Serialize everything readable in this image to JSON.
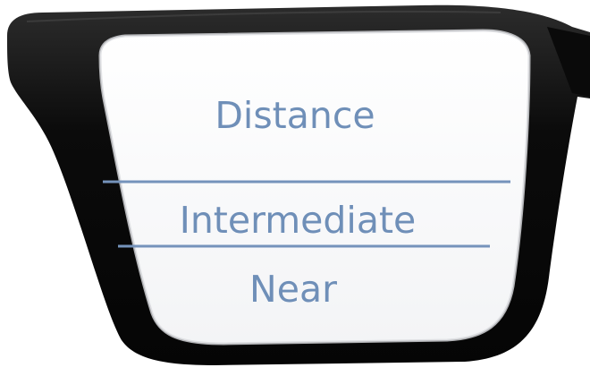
{
  "lens": {
    "zones": [
      {
        "id": "distance",
        "label": "Distance"
      },
      {
        "id": "intermediate",
        "label": "Intermediate"
      },
      {
        "id": "near",
        "label": "Near"
      }
    ]
  },
  "colors": {
    "frame": "#0b0b0b",
    "frame_highlight": "#3a3a3a",
    "lens_fill": "#fbfcfd",
    "text": "#6f8fb8",
    "divider": "#7593bb"
  }
}
